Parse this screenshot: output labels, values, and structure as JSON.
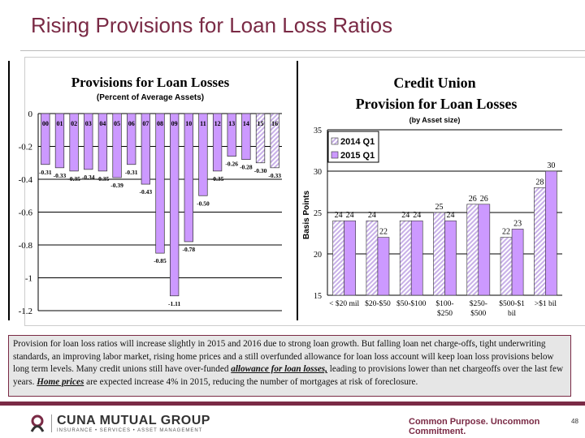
{
  "title": "Rising Provisions for Loan Loss Ratios",
  "chart_data": [
    {
      "type": "bar",
      "title": "Provisions for Loan Losses",
      "subtitle": "(Percent of Average Assets)",
      "categories": [
        "00",
        "01",
        "02",
        "03",
        "04",
        "05",
        "06",
        "07",
        "08",
        "09",
        "10",
        "11",
        "12",
        "13",
        "14",
        "15",
        "16"
      ],
      "values": [
        -0.31,
        -0.33,
        -0.35,
        -0.34,
        -0.35,
        -0.39,
        -0.31,
        -0.43,
        -0.85,
        -1.11,
        -0.78,
        -0.5,
        -0.35,
        -0.26,
        -0.28,
        -0.3,
        -0.33
      ],
      "labels": [
        "-0.31",
        "-0.33",
        "-0.35",
        "-0.34",
        "-0.35",
        "-0.39",
        "-0.31",
        "-0.43",
        "-0.85",
        "-1.11",
        "-0.78",
        "-0.50",
        "-0.35",
        "-0.26",
        "-0.28",
        "-0.30",
        "-0.33"
      ],
      "forecast": [
        false,
        false,
        false,
        false,
        false,
        false,
        false,
        false,
        false,
        false,
        false,
        false,
        false,
        false,
        false,
        true,
        true
      ],
      "ylim": [
        -1.2,
        0
      ],
      "yticks": [
        "0",
        "-0.2",
        "-0.4",
        "-0.6",
        "-0.8",
        "-1",
        "-1.2"
      ],
      "grid": true,
      "color": "#cc99ff"
    },
    {
      "type": "bar",
      "title": "Credit Union",
      "title2": "Provision for Loan Losses",
      "subtitle": "(by Asset size)",
      "ylabel": "Basis Points",
      "categories": [
        "< $20 mil",
        "$20-$50",
        "$50-$100",
        "$100-\n$250",
        "$250-\n$500",
        "$500-$1\nbil",
        ">$1 bil"
      ],
      "series": [
        {
          "name": "2014 Q1",
          "values": [
            24,
            24,
            24,
            25,
            26,
            22,
            28
          ],
          "color": "#e8d8f8",
          "pattern": "hatched"
        },
        {
          "name": "2015 Q1",
          "values": [
            24,
            22,
            24,
            24,
            26,
            23,
            30
          ],
          "color": "#cc99ff"
        }
      ],
      "ylim": [
        15,
        35
      ],
      "yticks": [
        "15",
        "20",
        "25",
        "30",
        "35"
      ],
      "legend": "top-left",
      "grid": true
    }
  ],
  "note": {
    "part1": "Provision for loan loss ratios will increase slightly in 2015 and 2016 due to strong loan growth.  But falling loan net charge-offs, tight underwriting standards, an improving labor market, rising home prices and a still overfunded allowance for loan loss account will keep loan loss provisions below long term levels.  Many credit unions still have over-funded ",
    "link1": "allowance for loan losses,",
    "part2": " leading to provisions lower than net chargeoffs over the last few years. ",
    "link2": "Home prices",
    "part3": " are expected increase 4% in 2015, reducing the number of mortgages at risk of foreclosure."
  },
  "footer": {
    "logo_name": "CUNA MUTUAL GROUP",
    "logo_sub": "INSURANCE • SERVICES • ASSET MANAGEMENT",
    "tagline": "Common Purpose. Uncommon Commitment.",
    "page": "48"
  }
}
